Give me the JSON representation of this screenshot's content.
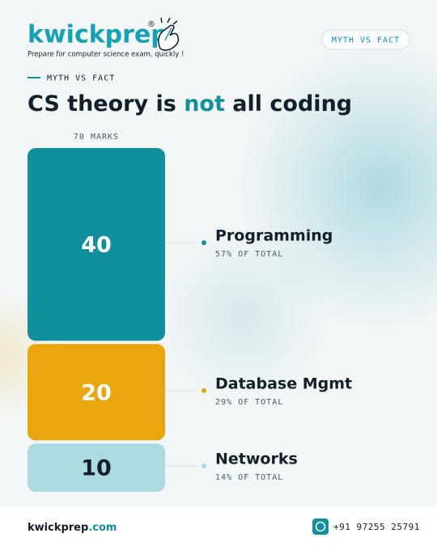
{
  "brand": {
    "name": "kwickprep",
    "mark": "®",
    "tagline": "Prepare for computer science exam, quickly !"
  },
  "badge": "MYTH VS FACT",
  "kicker": "MYTH VS FACT",
  "footer": {
    "site_name": "kwickprep",
    "site_tld": ".com",
    "phone": "+91 97255 25791"
  },
  "chart_data": {
    "type": "bar",
    "stacked": true,
    "title_parts": [
      "CS theory is",
      "not",
      "all coding"
    ],
    "total_label": "70 MARKS",
    "categories": [
      null
    ],
    "series": [
      {
        "name": "Programming",
        "color": "#108f9d",
        "text_color": "#ffffff",
        "values": [
          40
        ],
        "share_label": "57% OF TOTAL"
      },
      {
        "name": "Database Mgmt",
        "color": "#e8a60c",
        "text_color": "#ffffff",
        "values": [
          20
        ],
        "share_label": "29% OF TOTAL"
      },
      {
        "name": "Networks",
        "color": "#abdbe0",
        "text_color": "#13202a",
        "values": [
          10
        ],
        "share_label": "14% OF TOTAL"
      }
    ]
  }
}
